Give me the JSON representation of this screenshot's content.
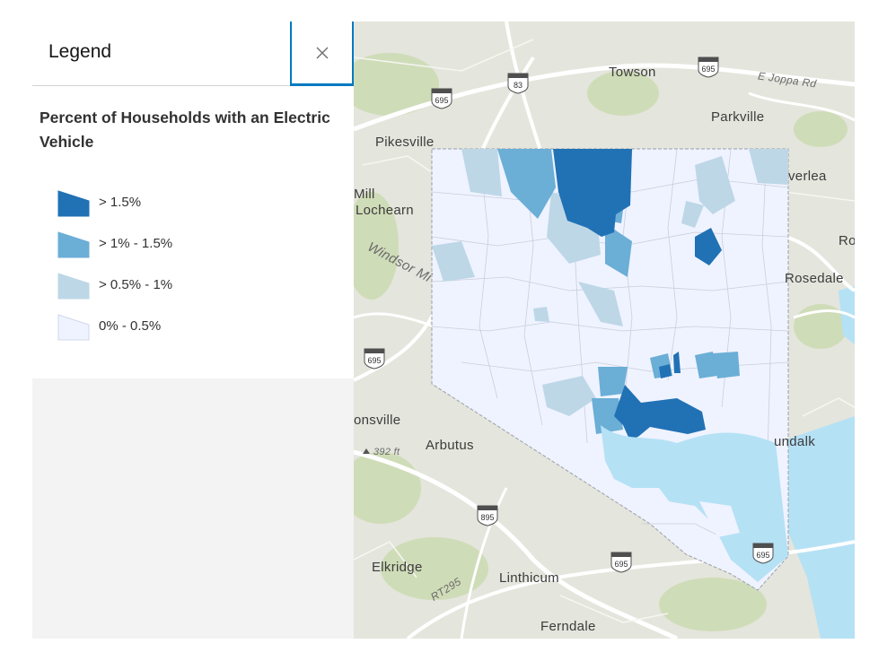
{
  "legend": {
    "header_title": "Legend",
    "close_label": "×",
    "layer_title": "Percent of Households with an Electric Vehicle",
    "items": [
      {
        "label": "> 1.5%",
        "color": "#2171b5"
      },
      {
        "label": "> 1% - 1.5%",
        "color": "#6baed6"
      },
      {
        "label": "> 0.5% - 1%",
        "color": "#bdd7e7"
      },
      {
        "label": "0% - 0.5%",
        "color": "#eff3ff"
      }
    ]
  },
  "map": {
    "places": [
      "Towson",
      "Parkville",
      "Pikesville",
      "Mill",
      "Lochearn",
      "Windsor Mi",
      "verlea",
      "Rosedale",
      "Ro",
      "onsville",
      "Arbutus",
      "undalk",
      "Elkridge",
      "Linthicum",
      "Ferndale",
      "E Joppa Rd",
      "RT295"
    ],
    "elevation": "392 ft",
    "shields": [
      "695",
      "83",
      "695",
      "695",
      "895",
      "695",
      "695"
    ],
    "colors": {
      "water": "#b5e1f5",
      "land": "#e4e5dc",
      "park": "#cfdcb8",
      "road": "#ffffff"
    }
  }
}
